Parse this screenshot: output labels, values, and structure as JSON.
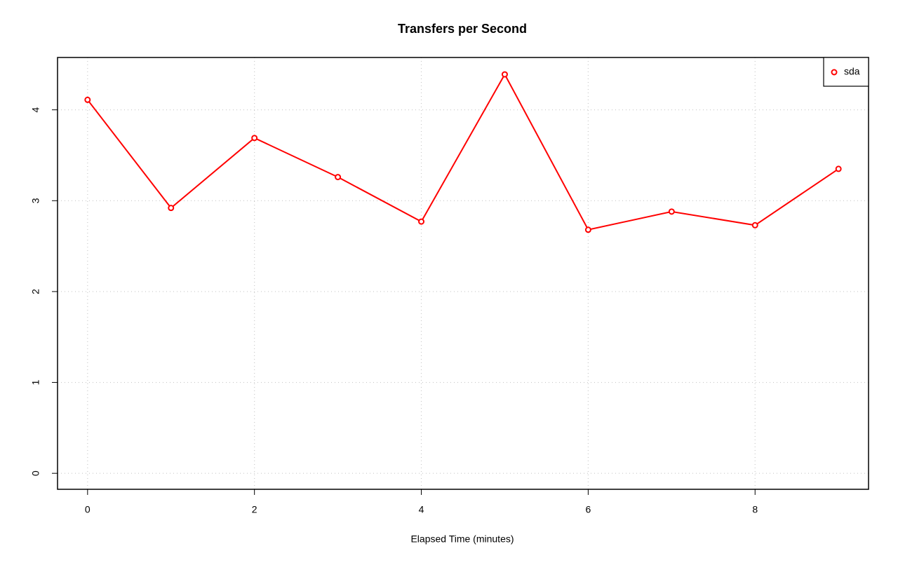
{
  "chart_data": {
    "type": "line",
    "title": "Transfers per Second",
    "x_label": "Elapsed Time (minutes)",
    "x": [
      0,
      1,
      2,
      3,
      4,
      5,
      6,
      7,
      8,
      9
    ],
    "series": [
      {
        "name": "sda",
        "color": "#ff0000",
        "values": [
          4.11,
          2.92,
          3.69,
          3.26,
          2.77,
          4.39,
          2.68,
          2.88,
          2.73,
          3.35
        ]
      }
    ],
    "xlim": [
      -0.36,
      9.36
    ],
    "xticks": [
      0,
      2,
      4,
      6,
      8
    ],
    "ylim": [
      -0.176,
      4.576
    ],
    "yticks": [
      0,
      1,
      2,
      3,
      4
    ],
    "grid": true,
    "legend": "top-right"
  }
}
